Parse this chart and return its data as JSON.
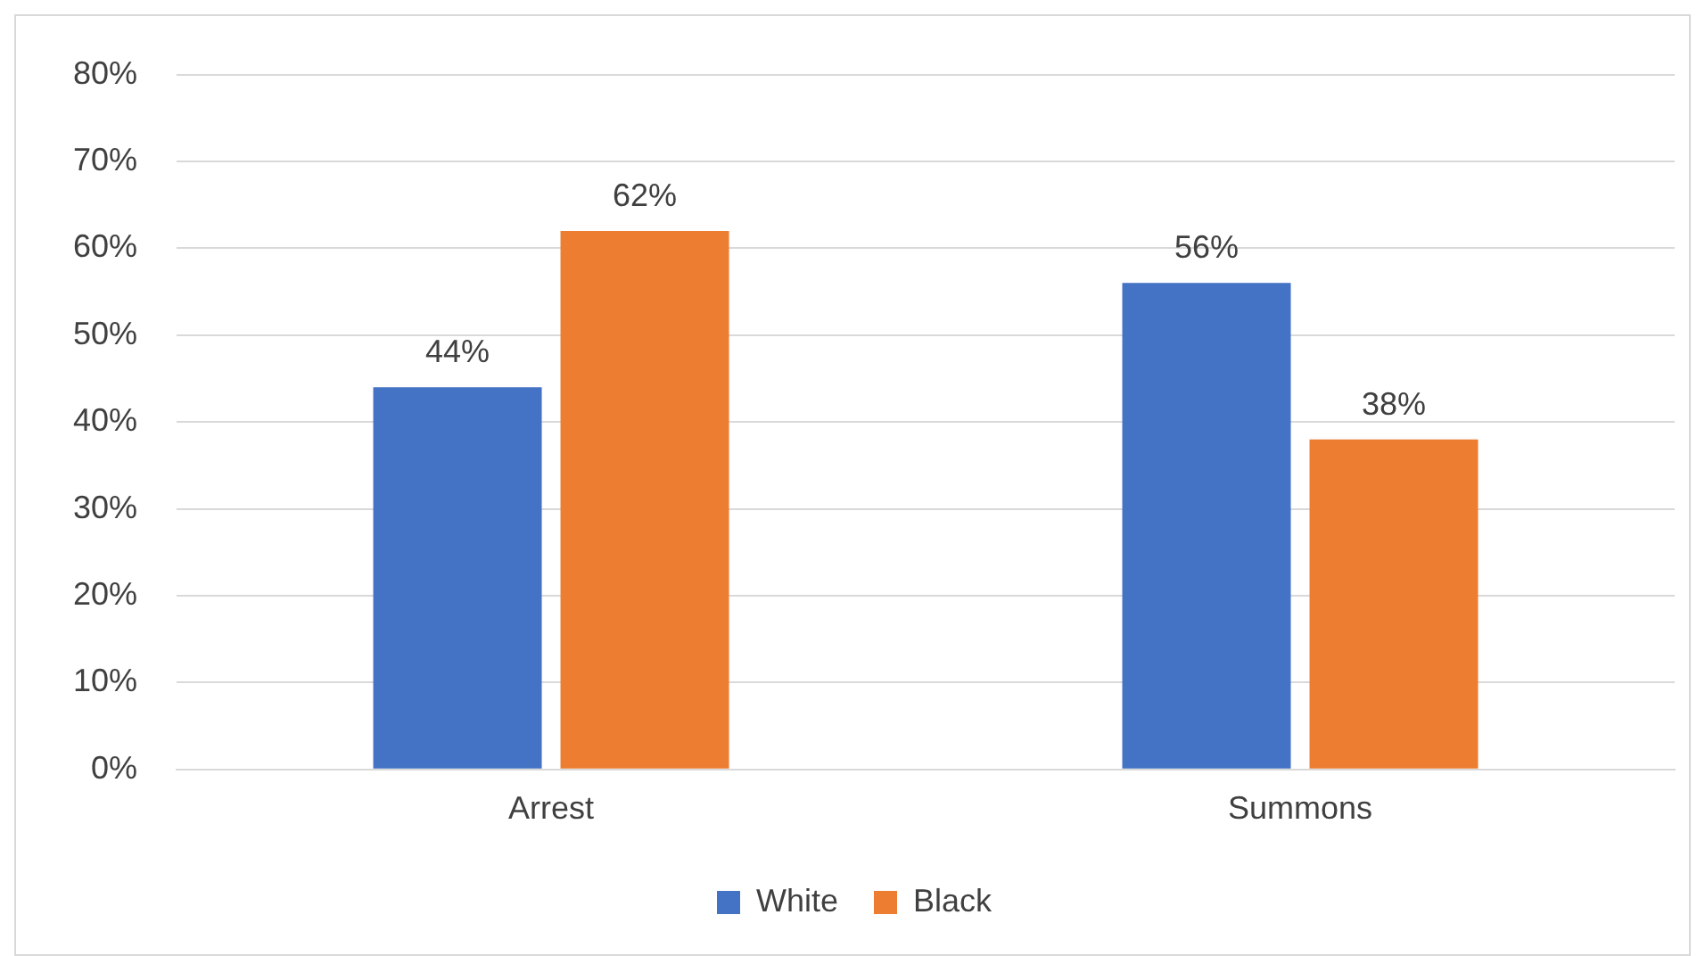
{
  "chart_data": {
    "type": "bar",
    "categories": [
      "Arrest",
      "Summons"
    ],
    "series": [
      {
        "name": "White",
        "color": "#4472c4",
        "values": [
          44,
          56
        ],
        "value_labels": [
          "44%",
          "56%"
        ]
      },
      {
        "name": "Black",
        "color": "#ed7d31",
        "values": [
          62,
          38
        ],
        "value_labels": [
          "62%",
          "38%"
        ]
      }
    ],
    "ylim": [
      0,
      80
    ],
    "yticks": [
      {
        "value": 0,
        "label": "0%"
      },
      {
        "value": 10,
        "label": "10%"
      },
      {
        "value": 20,
        "label": "20%"
      },
      {
        "value": 30,
        "label": "30%"
      },
      {
        "value": 40,
        "label": "40%"
      },
      {
        "value": 50,
        "label": "50%"
      },
      {
        "value": 60,
        "label": "60%"
      },
      {
        "value": 70,
        "label": "70%"
      },
      {
        "value": 80,
        "label": "80%"
      }
    ],
    "grid": "y",
    "legend": "bottom"
  }
}
